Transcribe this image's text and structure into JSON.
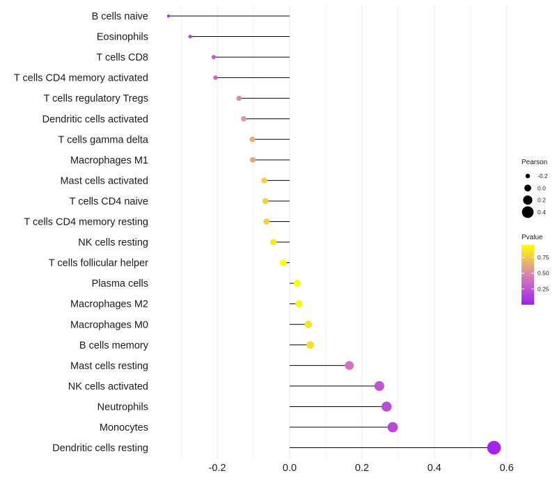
{
  "chart_data": {
    "type": "lollipop",
    "categories": [
      "B cells naive",
      "Eosinophils",
      "T cells CD8",
      "T cells CD4 memory activated",
      "T cells regulatory  Tregs",
      "Dendritic cells activated",
      "T cells gamma delta",
      "Macrophages M1",
      "Mast cells activated",
      "T cells CD4 naive",
      "T cells CD4 memory resting",
      "NK cells resting",
      "T cells follicular helper",
      "Plasma cells",
      "Macrophages M2",
      "Macrophages M0",
      "B cells memory",
      "Mast cells resting",
      "NK cells activated",
      "Neutrophils",
      "Monocytes",
      "Dendritic cells resting"
    ],
    "values": [
      -0.335,
      -0.275,
      -0.21,
      -0.205,
      -0.14,
      -0.127,
      -0.103,
      -0.102,
      -0.07,
      -0.067,
      -0.064,
      -0.045,
      -0.018,
      0.021,
      0.026,
      0.052,
      0.057,
      0.165,
      0.248,
      0.268,
      0.285,
      0.565
    ],
    "pvalues": [
      0.05,
      0.15,
      0.3,
      0.33,
      0.5,
      0.55,
      0.65,
      0.62,
      0.77,
      0.78,
      0.78,
      0.85,
      0.95,
      0.95,
      0.92,
      0.85,
      0.82,
      0.4,
      0.25,
      0.22,
      0.2,
      0.02
    ],
    "x_ticks": [
      -0.2,
      0.0,
      0.2,
      0.4,
      0.6
    ],
    "x_tick_labels": [
      "-0.2",
      "0.0",
      "0.2",
      "0.4",
      "0.6"
    ],
    "xlim": [
      -0.36,
      0.61
    ],
    "xlabel": "",
    "ylabel": "",
    "grid": "vertical major and minor",
    "legend_position": "right",
    "legend_size": {
      "title": "Pearson",
      "values": [
        -0.2,
        0.0,
        0.2,
        0.4
      ],
      "labels": [
        "-0.2",
        "0.0",
        "0.2",
        "0.4"
      ]
    },
    "legend_color": {
      "title": "Pvalue",
      "breaks": [
        0.75,
        0.5,
        0.25
      ],
      "labels": [
        "0.75",
        "0.50",
        "0.25"
      ],
      "range": [
        0.0,
        0.95
      ],
      "low_color": "#a020f0",
      "mid_color": "#d982b5",
      "high_color": "#ffff00"
    },
    "stem_color": "#000000",
    "grid_color": "#ebebeb"
  }
}
